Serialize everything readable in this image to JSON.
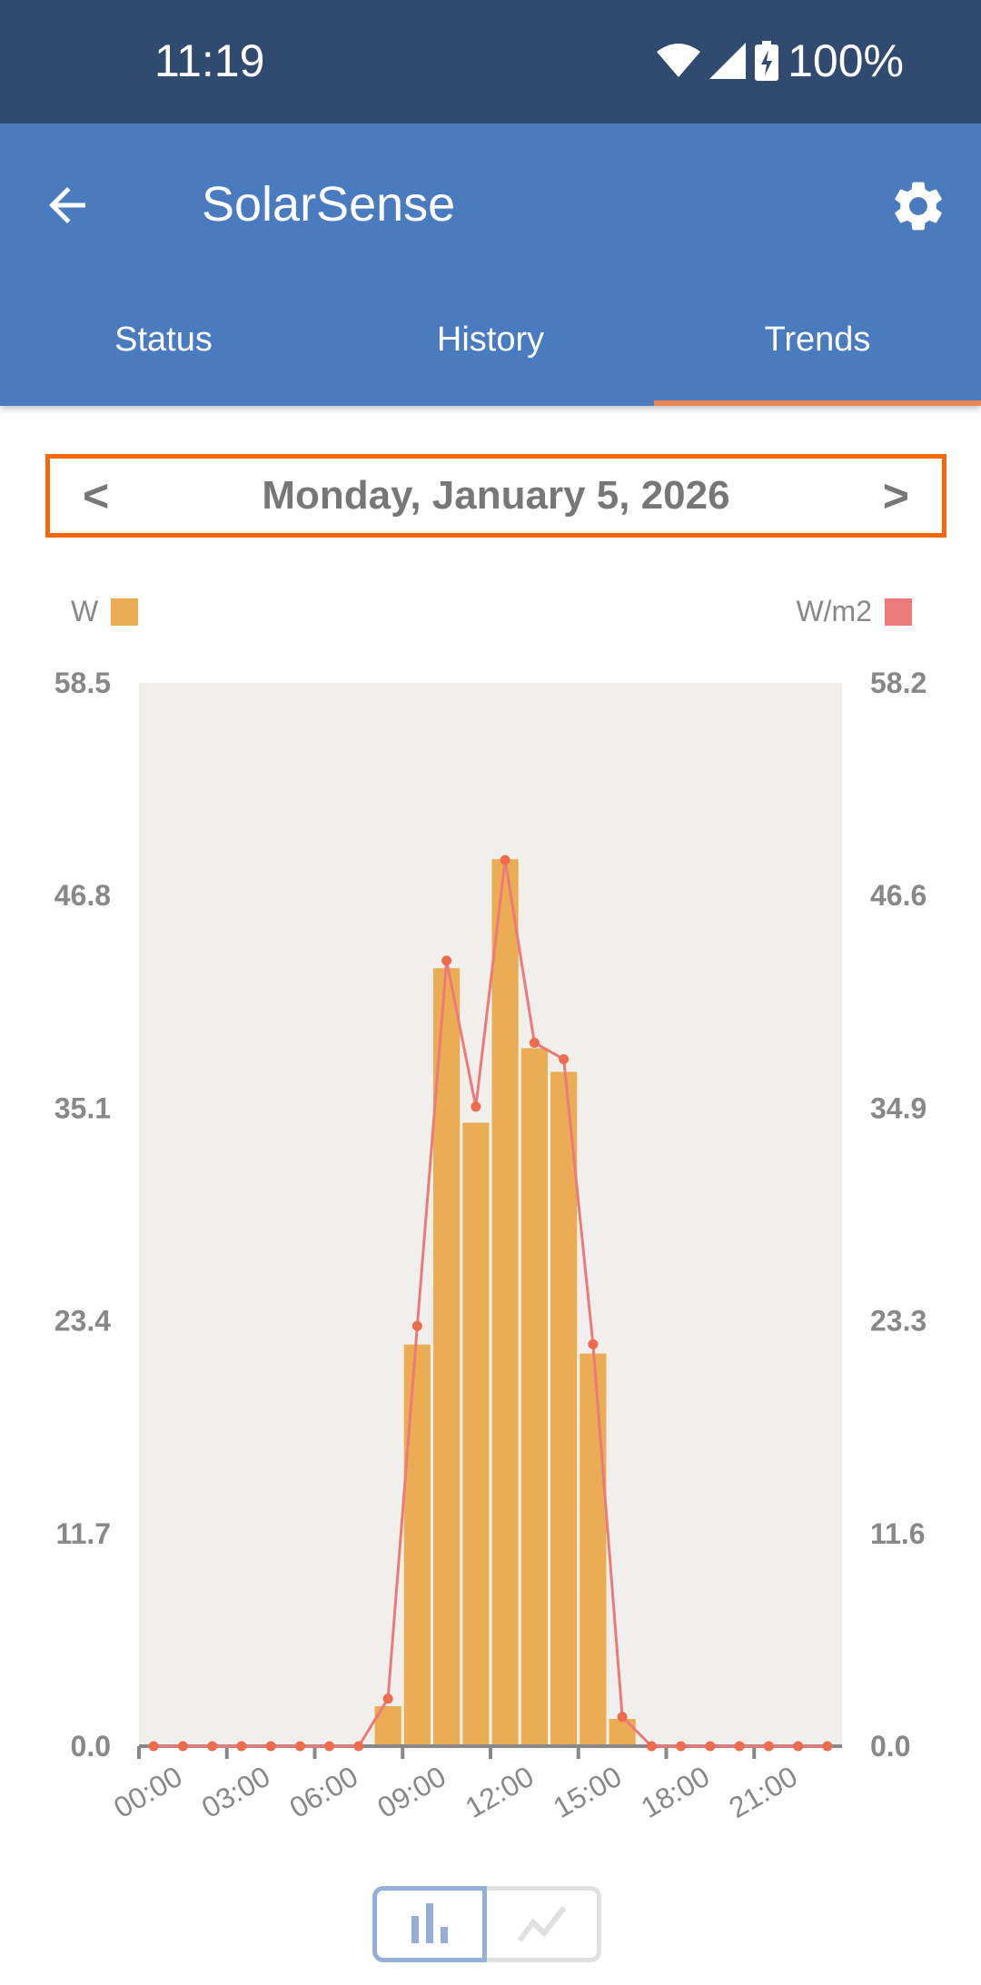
{
  "status_bar": {
    "time": "11:19",
    "battery": "100%"
  },
  "app_bar": {
    "title": "SolarSense"
  },
  "tabs": [
    {
      "label": "Status"
    },
    {
      "label": "History"
    },
    {
      "label": "Trends",
      "active": true
    }
  ],
  "date_nav": {
    "prev": "<",
    "date": "Monday, January 5, 2026",
    "next": ">"
  },
  "colors": {
    "status_bar": "#314a70",
    "app_bar": "#4a7bbf",
    "accent_border": "#f46a0a",
    "bar": "#ebad53",
    "line": "#ec7a7a",
    "dot": "#ee6b4d",
    "plot_bg": "#f0efec"
  },
  "chart_data": {
    "type": "bar+line",
    "x_ticks": [
      "00:00",
      "03:00",
      "06:00",
      "09:00",
      "12:00",
      "15:00",
      "18:00",
      "21:00"
    ],
    "x": [
      0,
      1,
      2,
      3,
      4,
      5,
      6,
      7,
      8,
      9,
      10,
      11,
      12,
      13,
      14,
      15,
      16,
      17,
      18,
      19,
      20,
      21,
      22,
      23
    ],
    "series": [
      {
        "name": "W",
        "type": "bar",
        "axis": "left",
        "values": [
          0,
          0,
          0,
          0,
          0,
          0,
          0,
          0,
          2.2,
          22.1,
          42.8,
          34.3,
          48.8,
          38.4,
          37.1,
          21.6,
          1.5,
          0,
          0,
          0,
          0,
          0,
          0,
          0
        ]
      },
      {
        "name": "W/m2",
        "type": "line",
        "axis": "right",
        "values": [
          0,
          0,
          0,
          0,
          0,
          0,
          0,
          0,
          2.6,
          23.0,
          43.0,
          35.0,
          48.5,
          38.5,
          37.6,
          22.0,
          1.6,
          0,
          0,
          0,
          0,
          0,
          0,
          0
        ]
      }
    ],
    "left_axis": {
      "ticks": [
        "0.0",
        "11.7",
        "23.4",
        "35.1",
        "46.8",
        "58.5"
      ],
      "ylim": [
        0,
        58.5
      ]
    },
    "right_axis": {
      "ticks": [
        "0.0",
        "11.6",
        "23.3",
        "34.9",
        "46.6",
        "58.2"
      ],
      "ylim": [
        0,
        58.2
      ]
    },
    "legend": {
      "left": "W",
      "right": "W/m2",
      "placement": "top"
    },
    "grid": false
  },
  "view_toggle": {
    "selected": "bar",
    "options": [
      "bar-chart-icon",
      "line-chart-icon"
    ]
  }
}
